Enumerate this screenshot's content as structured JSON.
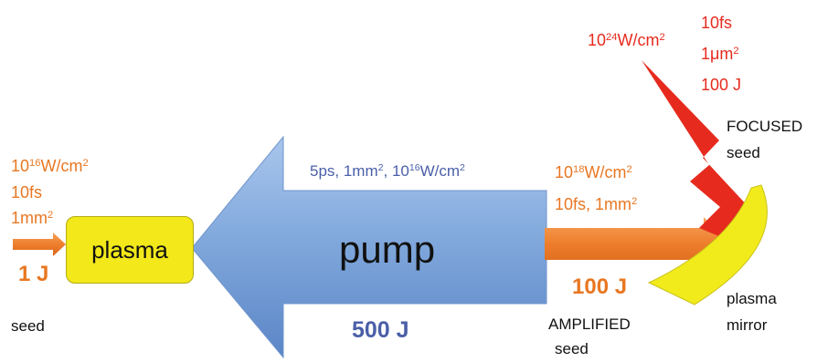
{
  "seed_input": {
    "intensity_base": "10",
    "intensity_exp": "16",
    "intensity_unit": "W/cm",
    "intensity_unit_exp": "2",
    "duration": "10fs",
    "area_base": "1mm",
    "area_exp": "2",
    "energy": "1 J",
    "label": "seed"
  },
  "plasma_box": {
    "label": "plasma"
  },
  "pump": {
    "label": "pump",
    "params_prefix": "5ps, 1mm",
    "params_exp1": "2",
    "params_sep": ", 10",
    "params_exp2": "16",
    "params_unit": "W/cm",
    "params_exp3": "2",
    "energy": "500 J"
  },
  "amplified": {
    "intensity_base": "10",
    "intensity_exp": "18",
    "intensity_unit": "W/cm",
    "intensity_unit_exp": "2",
    "line2_prefix": "10fs, 1mm",
    "line2_exp": "2",
    "energy": "100 J",
    "label_line1": "AMPLIFIED",
    "label_line2": "seed"
  },
  "focused": {
    "intensity_base": "10",
    "intensity_exp": "24",
    "intensity_unit": "W/cm",
    "intensity_unit_exp": "2",
    "duration": "10fs",
    "area_base": "1μm",
    "area_exp": "2",
    "energy": "100 J",
    "label_line1": "FOCUSED",
    "label_line2": "seed"
  },
  "mirror": {
    "label_line1": "plasma",
    "label_line2": "mirror"
  },
  "colors": {
    "orange": "#E87722",
    "red": "#E62B1E",
    "blue_text": "#4A5FA8",
    "pump_arrow": "#7FA6DA",
    "plasma_fill": "#F2E81A",
    "mirror_fill": "#F2EB1C"
  }
}
